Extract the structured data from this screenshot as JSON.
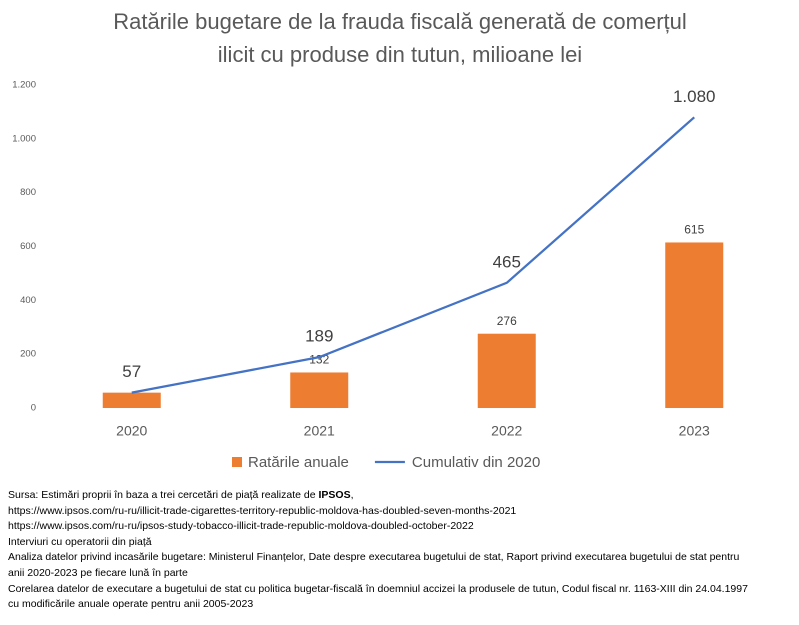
{
  "chart_data": {
    "type": "combo",
    "title": [
      "Ratările bugetare de la frauda fiscală generată de comerțul",
      "ilicit cu produse din tutun, milioane lei"
    ],
    "categories": [
      "2020",
      "2021",
      "2022",
      "2023"
    ],
    "series": [
      {
        "name": "Ratările anuale",
        "type": "bar",
        "color": "#ed7d31",
        "values": [
          57,
          132,
          276,
          615
        ],
        "value_labels": [
          null,
          "132",
          "276",
          "615"
        ]
      },
      {
        "name": "Cumulativ din 2020",
        "type": "line",
        "color": "#4472c4",
        "values": [
          57,
          189,
          465,
          1080
        ],
        "value_labels": [
          "57",
          "189",
          "465",
          "1.080"
        ]
      }
    ],
    "ylim": [
      0,
      1200
    ],
    "yticks": [
      0,
      200,
      400,
      600,
      800,
      {
        "value": 1000,
        "label": "1.000"
      },
      {
        "value": 1200,
        "label": "1.200"
      }
    ],
    "grid": false,
    "legend": "bottom"
  },
  "notes": {
    "source": {
      "prefix": "Sursa: Estimări proprii în baza a trei cercetări de piață realizate de ",
      "bold": "IPSOS",
      "suffix": ","
    },
    "lines": [
      "https://www.ipsos.com/ru-ru/illicit-trade-cigarettes-territory-republic-moldova-has-doubled-seven-months-2021",
      "https://www.ipsos.com/ru-ru/ipsos-study-tobacco-illicit-trade-republic-moldova-doubled-october-2022",
      "Interviuri cu operatorii din piață",
      "Analiza datelor privind incasările bugetare: Ministerul Finanțelor, Date despre executarea bugetului de stat, Raport privind executarea bugetului de stat pentru",
      "anii 2020-2023 pe fiecare lună în parte",
      "Corelarea datelor de executare a bugetului de stat cu politica bugetar-fiscală în doemniul accizei la produsele de tutun, Codul fiscal nr. 1163-XIII din  24.04.1997",
      "cu modificările anuale operate pentru  anii 2005-2023"
    ]
  }
}
